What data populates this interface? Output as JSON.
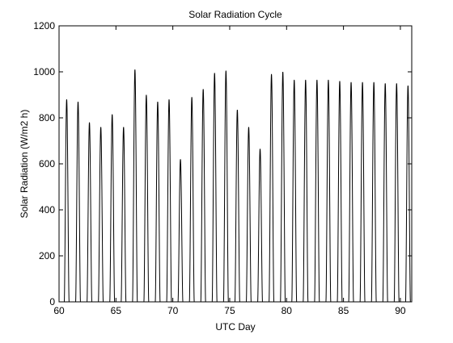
{
  "chart_data": {
    "type": "line",
    "title": "Solar Radiation Cycle",
    "xlabel": "UTC Day",
    "ylabel": "Solar Radiation (W/m2 h)",
    "xlim": [
      60,
      91
    ],
    "ylim": [
      0,
      1200
    ],
    "xticks": [
      60,
      65,
      70,
      75,
      80,
      85,
      90
    ],
    "yticks": [
      0,
      200,
      400,
      600,
      800,
      1000,
      1200
    ],
    "grid": false,
    "legend": "none",
    "series_color": "#000000",
    "daylight_start_fraction": 0.46,
    "daylight_end_fraction": 0.88,
    "daily_peaks": [
      {
        "day": 60,
        "peak": 880
      },
      {
        "day": 61,
        "peak": 870
      },
      {
        "day": 62,
        "peak": 780
      },
      {
        "day": 63,
        "peak": 760
      },
      {
        "day": 64,
        "peak": 815
      },
      {
        "day": 65,
        "peak": 760
      },
      {
        "day": 66,
        "peak": 1010
      },
      {
        "day": 67,
        "peak": 900
      },
      {
        "day": 68,
        "peak": 870
      },
      {
        "day": 69,
        "peak": 880
      },
      {
        "day": 70,
        "peak": 620
      },
      {
        "day": 71,
        "peak": 890
      },
      {
        "day": 72,
        "peak": 925
      },
      {
        "day": 73,
        "peak": 995
      },
      {
        "day": 74,
        "peak": 1005
      },
      {
        "day": 75,
        "peak": 835
      },
      {
        "day": 76,
        "peak": 760
      },
      {
        "day": 77,
        "peak": 665
      },
      {
        "day": 78,
        "peak": 990
      },
      {
        "day": 79,
        "peak": 1000
      },
      {
        "day": 80,
        "peak": 965
      },
      {
        "day": 81,
        "peak": 965
      },
      {
        "day": 82,
        "peak": 965
      },
      {
        "day": 83,
        "peak": 965
      },
      {
        "day": 84,
        "peak": 960
      },
      {
        "day": 85,
        "peak": 955
      },
      {
        "day": 86,
        "peak": 955
      },
      {
        "day": 87,
        "peak": 955
      },
      {
        "day": 88,
        "peak": 950
      },
      {
        "day": 89,
        "peak": 950
      },
      {
        "day": 90,
        "peak": 940
      }
    ]
  }
}
